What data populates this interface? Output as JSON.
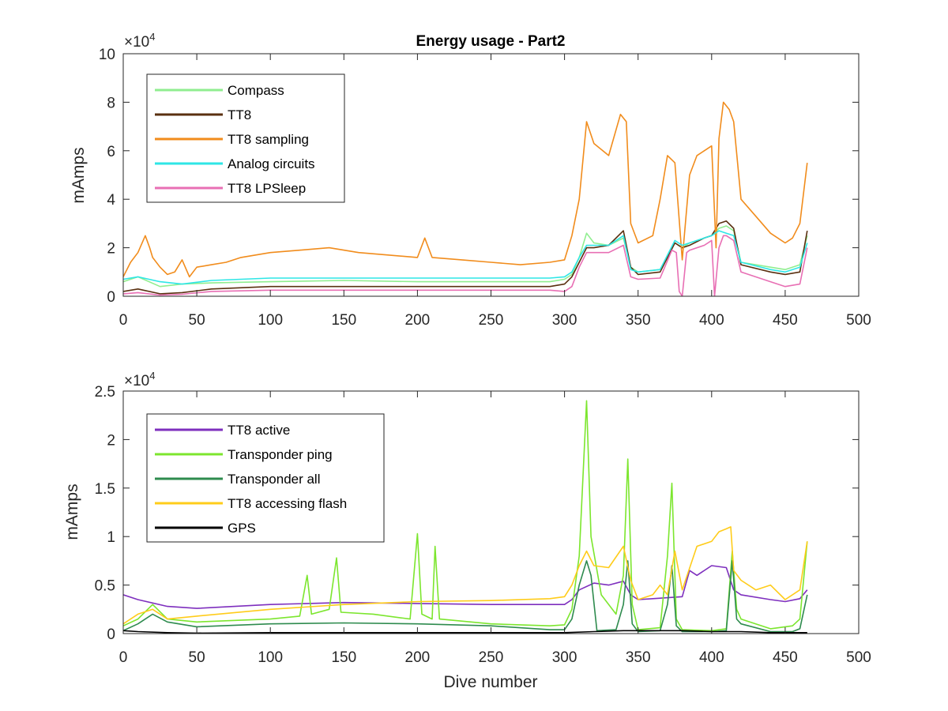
{
  "chart_data": [
    {
      "type": "line",
      "title": "Energy usage - Part2",
      "xlabel": "",
      "ylabel": "mAmps",
      "xlim": [
        0,
        500
      ],
      "ylim": [
        0,
        100000
      ],
      "xticks": [
        0,
        50,
        100,
        150,
        200,
        250,
        300,
        350,
        400,
        450,
        500
      ],
      "yticks": [
        0,
        20000,
        40000,
        60000,
        80000,
        100000
      ],
      "ytick_labels": [
        "0",
        "2",
        "4",
        "6",
        "8",
        "10"
      ],
      "exponent_label": {
        "base": "×10",
        "power": "4"
      },
      "legend_position": "top-left",
      "grid": false,
      "series": [
        {
          "name": "Compass",
          "color": "#90ee90",
          "x": [
            0,
            10,
            25,
            40,
            60,
            100,
            150,
            200,
            250,
            290,
            300,
            305,
            310,
            315,
            320,
            330,
            340,
            345,
            350,
            365,
            375,
            380,
            385,
            395,
            400,
            405,
            410,
            415,
            420,
            440,
            450,
            460,
            465
          ],
          "y": [
            6000,
            8000,
            4000,
            5000,
            5500,
            6000,
            6500,
            6000,
            6000,
            6000,
            7000,
            9000,
            16000,
            26000,
            22000,
            21000,
            24000,
            12000,
            10000,
            11000,
            22000,
            20000,
            22000,
            24000,
            25000,
            28000,
            29000,
            27000,
            14000,
            12000,
            11000,
            13000,
            25000
          ]
        },
        {
          "name": "TT8",
          "color": "#5a3010",
          "x": [
            0,
            10,
            25,
            40,
            60,
            100,
            150,
            200,
            250,
            290,
            300,
            305,
            310,
            315,
            320,
            330,
            340,
            345,
            350,
            365,
            375,
            380,
            385,
            395,
            400,
            405,
            410,
            415,
            420,
            440,
            450,
            460,
            465
          ],
          "y": [
            2000,
            3000,
            1000,
            1500,
            3000,
            4000,
            4000,
            4000,
            4000,
            4000,
            5000,
            8000,
            14000,
            20000,
            20000,
            21000,
            27000,
            12000,
            9000,
            10000,
            22000,
            20000,
            21000,
            24000,
            25000,
            30000,
            31000,
            28000,
            13000,
            10000,
            9000,
            10000,
            27000
          ]
        },
        {
          "name": "TT8 sampling",
          "color": "#f18c1c",
          "x": [
            0,
            5,
            10,
            15,
            18,
            20,
            25,
            30,
            35,
            40,
            45,
            50,
            60,
            70,
            80,
            100,
            120,
            140,
            160,
            180,
            200,
            205,
            210,
            230,
            250,
            270,
            290,
            300,
            305,
            310,
            315,
            320,
            330,
            338,
            342,
            345,
            350,
            360,
            365,
            370,
            375,
            380,
            385,
            390,
            395,
            400,
            403,
            405,
            408,
            412,
            415,
            420,
            430,
            440,
            450,
            455,
            460,
            465
          ],
          "y": [
            8000,
            14000,
            18000,
            25000,
            20000,
            16000,
            12000,
            9000,
            10000,
            15000,
            8000,
            12000,
            13000,
            14000,
            16000,
            18000,
            19000,
            20000,
            18000,
            17000,
            16000,
            24000,
            16000,
            15000,
            14000,
            13000,
            14000,
            15000,
            25000,
            40000,
            72000,
            63000,
            58000,
            75000,
            72000,
            30000,
            22000,
            25000,
            40000,
            58000,
            55000,
            15000,
            50000,
            58000,
            60000,
            62000,
            20000,
            65000,
            80000,
            77000,
            72000,
            40000,
            33000,
            26000,
            22000,
            24000,
            30000,
            55000
          ]
        },
        {
          "name": "Analog circuits",
          "color": "#2ee6e6",
          "x": [
            0,
            10,
            25,
            40,
            60,
            100,
            150,
            200,
            250,
            290,
            300,
            305,
            310,
            315,
            320,
            330,
            340,
            345,
            350,
            365,
            375,
            380,
            385,
            395,
            400,
            405,
            410,
            415,
            420,
            440,
            450,
            460,
            465
          ],
          "y": [
            7000,
            8000,
            6000,
            5000,
            6500,
            7500,
            7500,
            7500,
            7500,
            7500,
            8000,
            10000,
            16000,
            21000,
            21000,
            21000,
            25000,
            11000,
            10000,
            11000,
            23000,
            21000,
            22000,
            24000,
            25000,
            27000,
            26000,
            25000,
            14000,
            11000,
            10000,
            12000,
            22000
          ]
        },
        {
          "name": "TT8 LPSleep",
          "color": "#e86fb4",
          "x": [
            0,
            10,
            25,
            40,
            60,
            100,
            150,
            200,
            250,
            290,
            300,
            305,
            310,
            315,
            320,
            330,
            340,
            345,
            350,
            365,
            373,
            376,
            378,
            380,
            383,
            385,
            395,
            400,
            402,
            405,
            408,
            410,
            415,
            420,
            440,
            450,
            460,
            465
          ],
          "y": [
            1000,
            1500,
            500,
            800,
            2000,
            2500,
            2500,
            2500,
            2500,
            2500,
            2000,
            4000,
            12000,
            18000,
            18000,
            18000,
            21000,
            8000,
            7000,
            7500,
            19000,
            18000,
            2000,
            0,
            18000,
            19000,
            21000,
            23000,
            0,
            20000,
            25000,
            25000,
            23000,
            10000,
            6000,
            4000,
            5000,
            20000
          ]
        }
      ]
    },
    {
      "type": "line",
      "title": "",
      "xlabel": "Dive number",
      "ylabel": "mAmps",
      "xlim": [
        0,
        500
      ],
      "ylim": [
        0,
        25000
      ],
      "xticks": [
        0,
        50,
        100,
        150,
        200,
        250,
        300,
        350,
        400,
        450,
        500
      ],
      "yticks": [
        0,
        5000,
        10000,
        15000,
        20000,
        25000
      ],
      "ytick_labels": [
        "0",
        "0.5",
        "1",
        "1.5",
        "2",
        "2.5"
      ],
      "exponent_label": {
        "base": "×10",
        "power": "4"
      },
      "legend_position": "top-left",
      "grid": false,
      "series": [
        {
          "name": "TT8 active",
          "color": "#7e2fbe",
          "x": [
            0,
            10,
            30,
            50,
            100,
            150,
            200,
            250,
            300,
            305,
            310,
            320,
            330,
            340,
            345,
            350,
            360,
            370,
            380,
            385,
            390,
            400,
            410,
            415,
            420,
            440,
            450,
            460,
            465
          ],
          "y": [
            4000,
            3500,
            2800,
            2600,
            3000,
            3200,
            3100,
            3000,
            3000,
            3500,
            4500,
            5200,
            5000,
            5400,
            4000,
            3500,
            3600,
            3700,
            3800,
            6500,
            6000,
            7000,
            6800,
            4500,
            4000,
            3500,
            3300,
            3600,
            4500
          ]
        },
        {
          "name": "Transponder ping",
          "color": "#7ce62e",
          "x": [
            0,
            10,
            20,
            30,
            50,
            100,
            120,
            125,
            128,
            140,
            145,
            148,
            170,
            195,
            200,
            203,
            210,
            212,
            215,
            250,
            290,
            300,
            305,
            310,
            315,
            318,
            325,
            335,
            340,
            343,
            346,
            350,
            365,
            370,
            373,
            376,
            380,
            400,
            410,
            414,
            417,
            420,
            440,
            455,
            460,
            465
          ],
          "y": [
            800,
            1500,
            3000,
            1500,
            1200,
            1500,
            1800,
            6000,
            2000,
            2500,
            7800,
            2200,
            2000,
            1500,
            10300,
            2000,
            1500,
            9000,
            1500,
            1000,
            800,
            900,
            2500,
            8000,
            24000,
            10000,
            4000,
            2000,
            6000,
            18000,
            3000,
            400,
            600,
            8000,
            15500,
            1500,
            400,
            300,
            500,
            8500,
            2500,
            1500,
            500,
            800,
            1500,
            9500
          ]
        },
        {
          "name": "Transponder all",
          "color": "#2e8b4e",
          "x": [
            0,
            10,
            20,
            30,
            50,
            100,
            150,
            200,
            250,
            290,
            300,
            305,
            310,
            315,
            318,
            322,
            335,
            340,
            343,
            346,
            350,
            365,
            370,
            373,
            376,
            380,
            400,
            410,
            414,
            417,
            420,
            440,
            455,
            460,
            465
          ],
          "y": [
            300,
            1000,
            2000,
            1200,
            700,
            1000,
            1100,
            1000,
            800,
            400,
            400,
            1500,
            5000,
            7500,
            6000,
            300,
            400,
            3000,
            7500,
            1000,
            200,
            300,
            3000,
            7000,
            800,
            200,
            200,
            300,
            7500,
            1500,
            1000,
            200,
            200,
            500,
            4000
          ]
        },
        {
          "name": "TT8 accessing flash",
          "color": "#ffcc1a",
          "x": [
            0,
            10,
            20,
            30,
            50,
            100,
            150,
            200,
            250,
            290,
            300,
            305,
            310,
            315,
            320,
            330,
            340,
            345,
            350,
            360,
            365,
            370,
            375,
            380,
            390,
            400,
            405,
            410,
            413,
            415,
            420,
            430,
            440,
            450,
            460,
            465
          ],
          "y": [
            1000,
            2000,
            2500,
            1500,
            1800,
            2500,
            3000,
            3300,
            3400,
            3600,
            3800,
            5000,
            7000,
            8500,
            7000,
            6800,
            9000,
            5500,
            3500,
            4000,
            5000,
            4000,
            8500,
            4500,
            9000,
            9500,
            10500,
            10800,
            11000,
            6500,
            5500,
            4500,
            5000,
            3500,
            4500,
            9500
          ]
        },
        {
          "name": "GPS",
          "color": "#000000",
          "x": [
            0,
            10,
            30,
            50,
            100,
            150,
            200,
            250,
            300,
            320,
            340,
            350,
            380,
            400,
            420,
            440,
            465
          ],
          "y": [
            300,
            200,
            100,
            50,
            100,
            100,
            100,
            100,
            100,
            200,
            300,
            300,
            300,
            200,
            200,
            100,
            100
          ]
        }
      ]
    }
  ]
}
